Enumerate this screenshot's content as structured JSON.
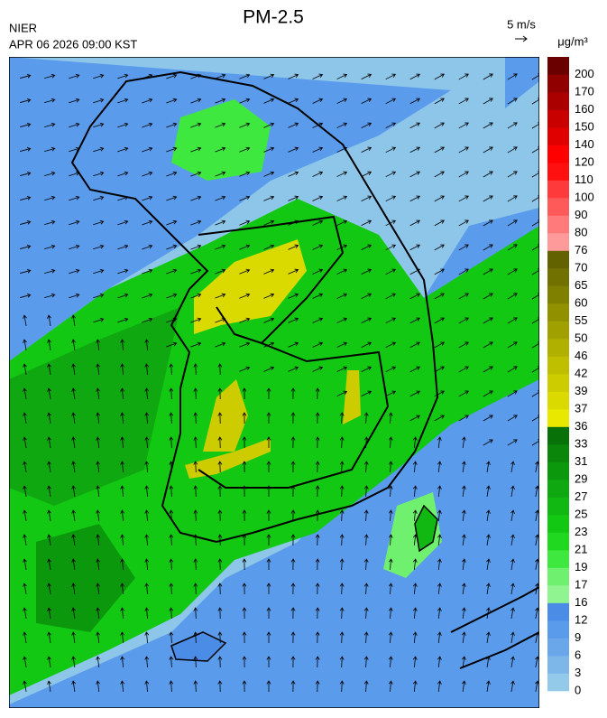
{
  "header": {
    "title": "PM-2.5",
    "agency": "NIER",
    "timestamp": "APR 06 2026 09:00 KST",
    "wind_scale": "5 m/s",
    "unit": "μg/m³"
  },
  "colorbar": {
    "levels": [
      0,
      3,
      6,
      9,
      12,
      16,
      17,
      19,
      21,
      23,
      25,
      27,
      29,
      31,
      33,
      36,
      37,
      39,
      42,
      46,
      50,
      55,
      60,
      65,
      70,
      76,
      80,
      90,
      100,
      110,
      120,
      140,
      150,
      160,
      170,
      200
    ],
    "colors": [
      "#93c9e9",
      "#7db7ea",
      "#69a7ea",
      "#5a9beb",
      "#4b8ce6",
      "#90f590",
      "#6ff06f",
      "#3fe83f",
      "#1fd81f",
      "#12c812",
      "#12b812",
      "#10a810",
      "#0c980c",
      "#0a860a",
      "#087208",
      "#e8e800",
      "#dada00",
      "#cccc00",
      "#bfbf00",
      "#b0b000",
      "#a0a000",
      "#909000",
      "#808000",
      "#717100",
      "#626200",
      "#ff9a9a",
      "#ff7a7a",
      "#ff5a5a",
      "#ff3a3a",
      "#ff1010",
      "#ff0000",
      "#e00000",
      "#c80000",
      "#aa0000",
      "#900000",
      "#6a0000"
    ]
  }
}
